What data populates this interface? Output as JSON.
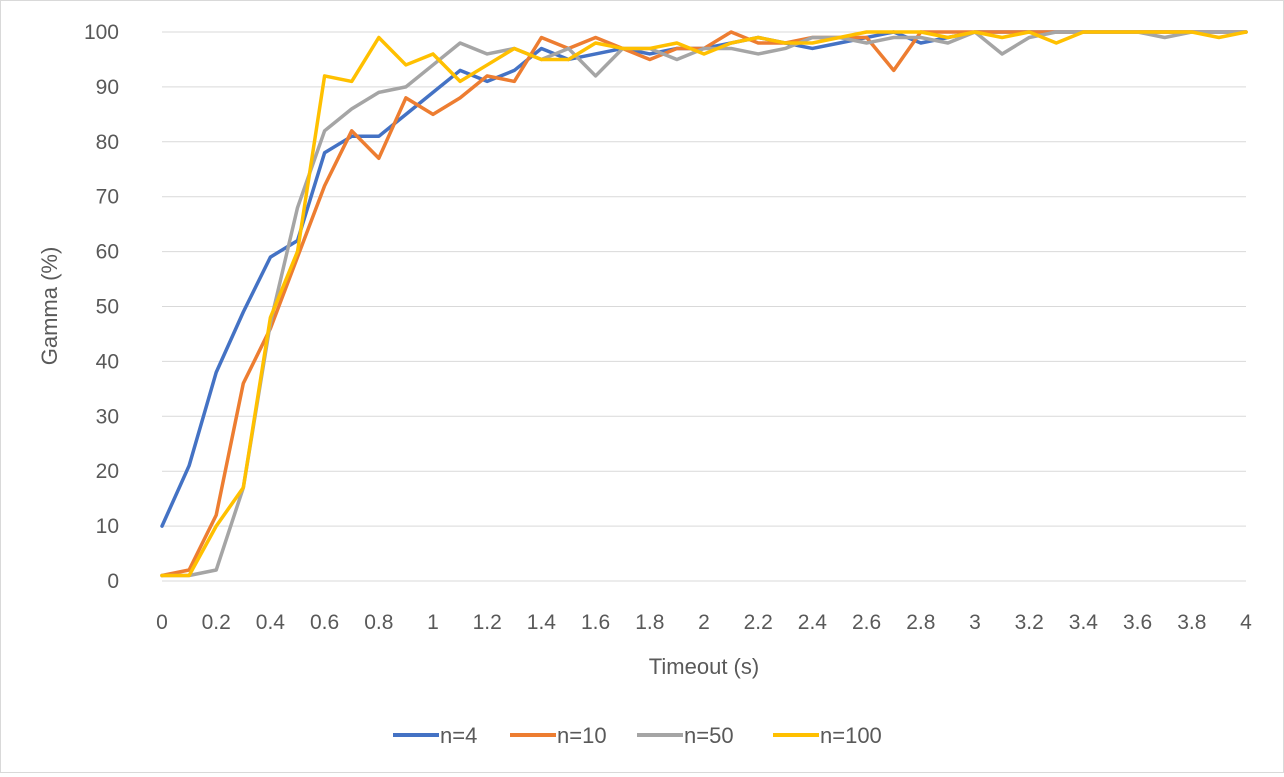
{
  "chart_data": {
    "type": "line",
    "title": "",
    "xlabel": "Timeout (s)",
    "ylabel": "Gamma (%)",
    "xlim": [
      0,
      4
    ],
    "ylim": [
      0,
      100
    ],
    "x_ticks": [
      0,
      0.2,
      0.4,
      0.6,
      0.8,
      1,
      1.2,
      1.4,
      1.6,
      1.8,
      2,
      2.2,
      2.4,
      2.6,
      2.8,
      3,
      3.2,
      3.4,
      3.6,
      3.8,
      4
    ],
    "y_ticks": [
      0,
      10,
      20,
      30,
      40,
      50,
      60,
      70,
      80,
      90,
      100
    ],
    "grid": "horizontal",
    "legend_position": "bottom",
    "x": [
      0,
      0.1,
      0.2,
      0.3,
      0.4,
      0.5,
      0.6,
      0.7,
      0.8,
      0.9,
      1,
      1.1,
      1.2,
      1.3,
      1.4,
      1.5,
      1.6,
      1.7,
      1.8,
      1.9,
      2,
      2.1,
      2.2,
      2.3,
      2.4,
      2.5,
      2.6,
      2.7,
      2.8,
      2.9,
      3,
      3.1,
      3.2,
      3.3,
      3.4,
      3.5,
      3.6,
      3.7,
      3.8,
      3.9,
      4
    ],
    "series": [
      {
        "name": "n=4",
        "color": "#4472c4",
        "values": [
          10,
          21,
          38,
          49,
          59,
          62,
          78,
          81,
          81,
          85,
          89,
          93,
          91,
          93,
          97,
          95,
          96,
          97,
          96,
          97,
          97,
          98,
          99,
          98,
          97,
          98,
          99,
          100,
          98,
          99,
          100,
          100,
          100,
          100,
          100,
          100,
          100,
          100,
          100,
          100,
          100
        ]
      },
      {
        "name": "n=10",
        "color": "#ed7d31",
        "values": [
          1,
          2,
          12,
          36,
          46,
          59,
          72,
          82,
          77,
          88,
          85,
          88,
          92,
          91,
          99,
          97,
          99,
          97,
          95,
          97,
          97,
          100,
          98,
          98,
          99,
          99,
          99,
          93,
          100,
          100,
          100,
          100,
          100,
          100,
          100,
          100,
          100,
          100,
          100,
          100,
          100
        ]
      },
      {
        "name": "n=50",
        "color": "#a5a5a5",
        "values": [
          1,
          1,
          2,
          17,
          47,
          68,
          82,
          86,
          89,
          90,
          94,
          98,
          96,
          97,
          95,
          97,
          92,
          97,
          97,
          95,
          97,
          97,
          96,
          97,
          99,
          99,
          98,
          99,
          99,
          98,
          100,
          96,
          99,
          100,
          100,
          100,
          100,
          99,
          100,
          100,
          100
        ]
      },
      {
        "name": "n=100",
        "color": "#ffc000",
        "values": [
          1,
          1,
          10,
          17,
          48,
          60,
          92,
          91,
          99,
          94,
          96,
          91,
          94,
          97,
          95,
          95,
          98,
          97,
          97,
          98,
          96,
          98,
          99,
          98,
          98,
          99,
          100,
          100,
          100,
          99,
          100,
          99,
          100,
          98,
          100,
          100,
          100,
          100,
          100,
          99,
          100
        ]
      }
    ]
  }
}
